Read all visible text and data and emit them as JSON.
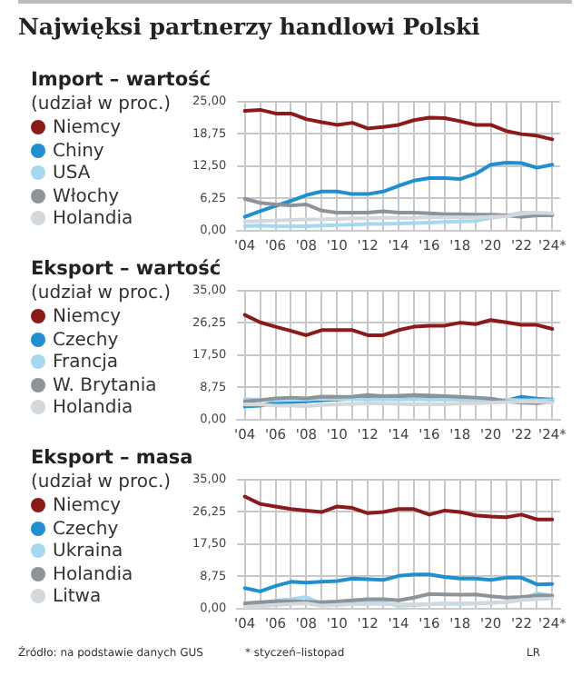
{
  "chart_data": [
    {
      "type": "other",
      "title": "Najwięksi partnerzy handlowi Polski"
    },
    {
      "type": "line",
      "title": "Import – wartość",
      "subtitle": "(udział w proc.)",
      "categories": [
        "'04",
        null,
        "'06",
        null,
        "'08",
        null,
        "'10",
        null,
        "'12",
        null,
        "'14",
        null,
        "'16",
        null,
        "'18",
        null,
        "'20",
        null,
        "'22",
        null,
        "'24*"
      ],
      "series": [
        {
          "name": "Niemcy",
          "color": "#8b1a1a",
          "values": [
            23.2,
            23.4,
            22.7,
            22.7,
            21.6,
            21.0,
            20.5,
            20.9,
            19.8,
            20.1,
            20.5,
            21.4,
            21.9,
            21.8,
            21.2,
            20.5,
            20.5,
            19.3,
            18.7,
            18.4,
            17.7
          ]
        },
        {
          "name": "Chiny",
          "color": "#1f8fd1",
          "values": [
            2.7,
            3.8,
            4.8,
            5.8,
            6.9,
            7.6,
            7.6,
            7.1,
            7.1,
            7.6,
            8.7,
            9.7,
            10.2,
            10.2,
            10.0,
            11.0,
            12.8,
            13.2,
            13.1,
            12.2,
            12.8
          ]
        },
        {
          "name": "USA",
          "color": "#a6d8f0",
          "values": [
            0.9,
            1.0,
            0.9,
            0.9,
            0.9,
            1.0,
            1.1,
            1.2,
            1.3,
            1.3,
            1.4,
            1.5,
            1.6,
            1.7,
            1.8,
            1.9,
            2.5,
            2.9,
            3.5,
            3.4,
            3.2
          ]
        },
        {
          "name": "Włochy",
          "color": "#8c9399",
          "values": [
            6.2,
            5.4,
            5.1,
            4.9,
            5.1,
            3.9,
            3.5,
            3.5,
            3.5,
            3.8,
            3.5,
            3.5,
            3.4,
            3.2,
            3.2,
            3.1,
            3.1,
            3.0,
            2.7,
            3.0,
            3.0
          ]
        },
        {
          "name": "Holandia",
          "color": "#d3d8dc",
          "values": [
            1.8,
            1.9,
            2.0,
            2.1,
            2.2,
            2.2,
            2.3,
            2.4,
            2.4,
            2.5,
            2.5,
            2.5,
            2.6,
            2.6,
            2.6,
            2.6,
            2.7,
            2.8,
            3.3,
            3.5,
            3.4
          ]
        }
      ],
      "ylim": [
        0,
        25
      ],
      "yticks": [
        {
          "value": 0,
          "label": "0,00"
        },
        {
          "value": 6.25,
          "label": "6,25"
        },
        {
          "value": 12.5,
          "label": "12,50"
        },
        {
          "value": 18.75,
          "label": "18,75"
        },
        {
          "value": 25,
          "label": "25,00"
        }
      ],
      "grid": true,
      "legend": "left"
    },
    {
      "type": "line",
      "title": "Eksport  – wartość",
      "subtitle": "(udział w proc.)",
      "categories": [
        "'04",
        null,
        "'06",
        null,
        "'08",
        null,
        "'10",
        null,
        "'12",
        null,
        "'14",
        null,
        "'16",
        null,
        "'18",
        null,
        "'20",
        null,
        "'22",
        null,
        "'24*"
      ],
      "series": [
        {
          "name": "Niemcy",
          "color": "#8b1a1a",
          "values": [
            28.4,
            26.4,
            25.2,
            24.1,
            22.9,
            24.3,
            24.3,
            24.3,
            22.9,
            22.9,
            24.3,
            25.2,
            25.5,
            25.5,
            26.3,
            25.9,
            27.0,
            26.4,
            25.7,
            25.7,
            24.6
          ]
        },
        {
          "name": "Czechy",
          "color": "#1f8fd1",
          "values": [
            3.6,
            3.8,
            4.6,
            4.8,
            5.0,
            5.3,
            5.5,
            5.8,
            6.0,
            5.8,
            5.9,
            6.1,
            6.2,
            6.1,
            6.0,
            5.8,
            5.6,
            5.2,
            6.2,
            5.7,
            5.5
          ]
        },
        {
          "name": "Francja",
          "color": "#a6d8f0",
          "values": [
            5.6,
            5.5,
            5.3,
            5.4,
            5.5,
            5.7,
            5.6,
            5.6,
            5.5,
            5.6,
            5.5,
            5.6,
            5.5,
            5.5,
            5.4,
            5.4,
            5.3,
            5.4,
            5.3,
            5.3,
            5.3
          ]
        },
        {
          "name": "W. Brytania",
          "color": "#8c9399",
          "values": [
            5.0,
            5.3,
            5.8,
            6.0,
            5.8,
            6.3,
            6.2,
            6.3,
            6.7,
            6.4,
            6.5,
            6.7,
            6.6,
            6.4,
            6.2,
            6.0,
            5.7,
            5.0,
            4.6,
            4.5,
            4.8
          ]
        },
        {
          "name": "Holandia",
          "color": "#d3d8dc",
          "values": [
            4.1,
            4.1,
            3.8,
            3.8,
            3.7,
            4.0,
            4.2,
            4.3,
            4.4,
            4.4,
            4.3,
            4.2,
            4.3,
            4.2,
            4.4,
            4.4,
            4.6,
            4.8,
            4.9,
            4.9,
            4.6
          ]
        }
      ],
      "ylim": [
        0,
        35
      ],
      "yticks": [
        {
          "value": 0,
          "label": "0,00"
        },
        {
          "value": 8.75,
          "label": "8,75"
        },
        {
          "value": 17.5,
          "label": "17,50"
        },
        {
          "value": 26.25,
          "label": "26,25"
        },
        {
          "value": 35,
          "label": "35,00"
        }
      ],
      "grid": true,
      "legend": "left"
    },
    {
      "type": "line",
      "title": "Eksport  – masa",
      "subtitle": "(udział w proc.)",
      "categories": [
        "'04",
        null,
        "'06",
        null,
        "'08",
        null,
        "'10",
        null,
        "'12",
        null,
        "'14",
        null,
        "'16",
        null,
        "'18",
        null,
        "'20",
        null,
        "'22",
        null,
        "'24*"
      ],
      "series": [
        {
          "name": "Niemcy",
          "color": "#8b1a1a",
          "values": [
            30.4,
            28.4,
            27.7,
            27.0,
            26.6,
            26.2,
            27.7,
            27.3,
            25.9,
            26.2,
            27.0,
            27.0,
            25.5,
            26.6,
            26.2,
            25.3,
            25.0,
            24.8,
            25.5,
            24.2,
            24.2
          ]
        },
        {
          "name": "Czechy",
          "color": "#1f8fd1",
          "values": [
            5.6,
            4.7,
            6.2,
            7.3,
            7.1,
            7.3,
            7.5,
            8.2,
            8.0,
            7.8,
            8.9,
            9.3,
            9.3,
            8.6,
            8.2,
            8.2,
            7.8,
            8.4,
            8.4,
            6.6,
            6.7
          ]
        },
        {
          "name": "Ukraina",
          "color": "#a6d8f0",
          "values": [
            0.8,
            1.5,
            2.2,
            2.6,
            3.2,
            1.2,
            1.8,
            1.6,
            1.9,
            1.7,
            0.8,
            1.0,
            1.2,
            1.4,
            1.3,
            1.4,
            1.6,
            1.8,
            2.4,
            4.2,
            3.6
          ]
        },
        {
          "name": "Holandia",
          "color": "#8c9399",
          "values": [
            1.5,
            1.8,
            2.0,
            2.0,
            1.9,
            1.8,
            2.0,
            2.3,
            2.6,
            2.6,
            2.3,
            3.0,
            4.0,
            3.9,
            3.8,
            3.9,
            3.4,
            3.0,
            3.2,
            3.6,
            3.5
          ]
        },
        {
          "name": "Litwa",
          "color": "#d3d8dc",
          "values": [
            0.5,
            0.7,
            1.0,
            1.3,
            1.5,
            0.8,
            1.0,
            1.2,
            1.3,
            1.3,
            1.2,
            1.2,
            1.3,
            1.4,
            1.5,
            1.5,
            1.6,
            1.9,
            2.4,
            2.6,
            2.8
          ]
        }
      ],
      "ylim": [
        0,
        35
      ],
      "yticks": [
        {
          "value": 0,
          "label": "0,00"
        },
        {
          "value": 8.75,
          "label": "8,75"
        },
        {
          "value": 17.5,
          "label": "17,50"
        },
        {
          "value": 26.25,
          "label": "26,25"
        },
        {
          "value": 35,
          "label": "35,00"
        }
      ],
      "grid": true,
      "legend": "left",
      "annotations": [
        "Źródło: na podstawie danych GUS",
        "* styczeń–listopad",
        "LR"
      ]
    }
  ]
}
